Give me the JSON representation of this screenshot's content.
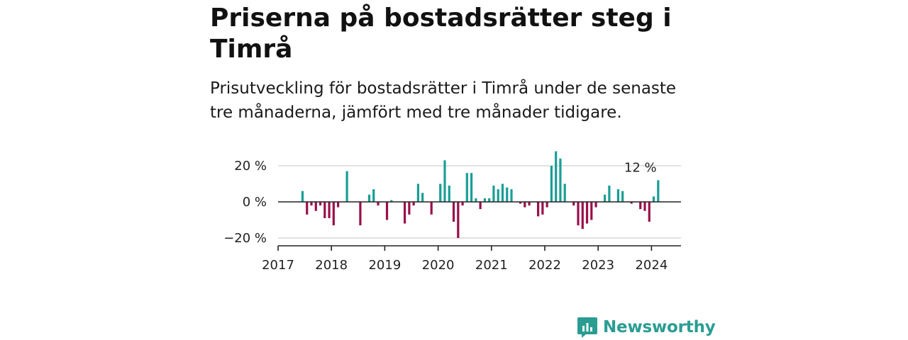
{
  "title": "Priserna på bostadsrätter steg i Timrå",
  "subtitle": "Prisutveckling för bostadsrätter i Timrå under de senaste tre månaderna, jämfört med tre månader tidigare.",
  "brand": {
    "name": "Newsworthy",
    "icon": "newsworthy-logo-icon",
    "color": "#2a9d93"
  },
  "colors": {
    "positive": "#1a9e96",
    "negative": "#99104a",
    "grid": "#d9d9d9",
    "axis": "#222222"
  },
  "chart_data": {
    "type": "bar",
    "title": "",
    "xlabel": "",
    "ylabel": "",
    "ylim": [
      -22,
      30
    ],
    "y_ticks": [
      {
        "value": 20,
        "label": "20 %"
      },
      {
        "value": 0,
        "label": "0 %"
      },
      {
        "value": -20,
        "label": "−20 %"
      }
    ],
    "x_ticks": [
      "2017",
      "2018",
      "2019",
      "2020",
      "2021",
      "2022",
      "2023",
      "2024"
    ],
    "last_value_label": "12 %",
    "grid": true,
    "series": [
      {
        "start": "2017-06",
        "frequency": "monthly",
        "values": [
          6,
          -7,
          -2,
          -5,
          -2,
          -9,
          -9,
          -13,
          -3,
          0,
          17,
          0,
          0,
          -13,
          0,
          4,
          7,
          -2,
          0,
          -10,
          1,
          0,
          0,
          -12,
          -7,
          -2,
          10,
          5,
          0,
          -7,
          0,
          10,
          23,
          9,
          -11,
          -20,
          -2,
          16,
          16,
          2,
          -4,
          2,
          2,
          9,
          7,
          10,
          8,
          7,
          0,
          -1,
          -3,
          -2,
          0,
          -8,
          -7,
          -3,
          20,
          28,
          24,
          10,
          0,
          -2,
          -13,
          -15,
          -12,
          -10,
          -3,
          0,
          4,
          9,
          0,
          7,
          6,
          0,
          -1,
          0,
          -4,
          -5,
          -11,
          3,
          12
        ]
      }
    ]
  }
}
